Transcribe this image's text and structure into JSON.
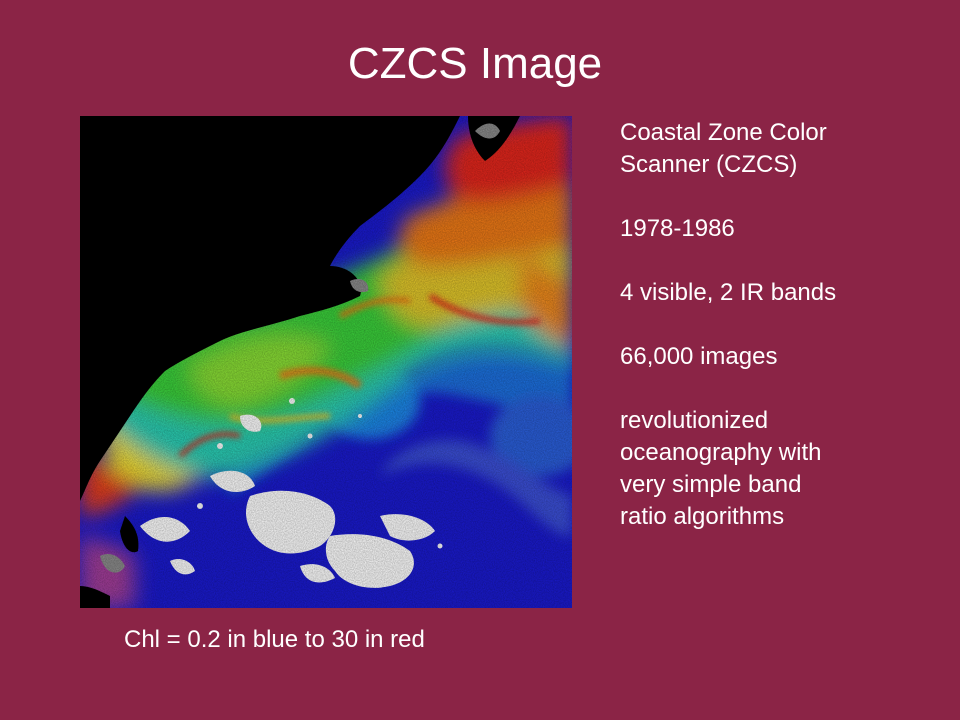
{
  "slide": {
    "title": "CZCS Image",
    "caption": "Chl = 0.2 in blue to 30 in red",
    "background_color": "#8b2446",
    "text_color": "#ffffff",
    "bullets": [
      {
        "lines": [
          "Coastal Zone Color",
          "Scanner (CZCS)"
        ]
      },
      {
        "lines": [
          "1978-1986"
        ]
      },
      {
        "lines": [
          "4 visible, 2 IR bands"
        ]
      },
      {
        "lines": [
          "66,000 images"
        ]
      },
      {
        "lines": [
          "revolutionized",
          "oceanography with",
          "very simple band",
          "ratio algorithms"
        ]
      }
    ],
    "image": {
      "subject": "satellite chlorophyll map of ocean and coastline",
      "palette": {
        "land": "#000000",
        "cloud": "#ffffff",
        "low_chl": "#1010c8",
        "mid_low_chl": "#1e7fe6",
        "mid_chl": "#1ec8c8",
        "mid_high_chl": "#32d23c",
        "high_chl": "#e6e632",
        "very_high_chl": "#f07814",
        "max_chl": "#e6141e"
      }
    }
  }
}
